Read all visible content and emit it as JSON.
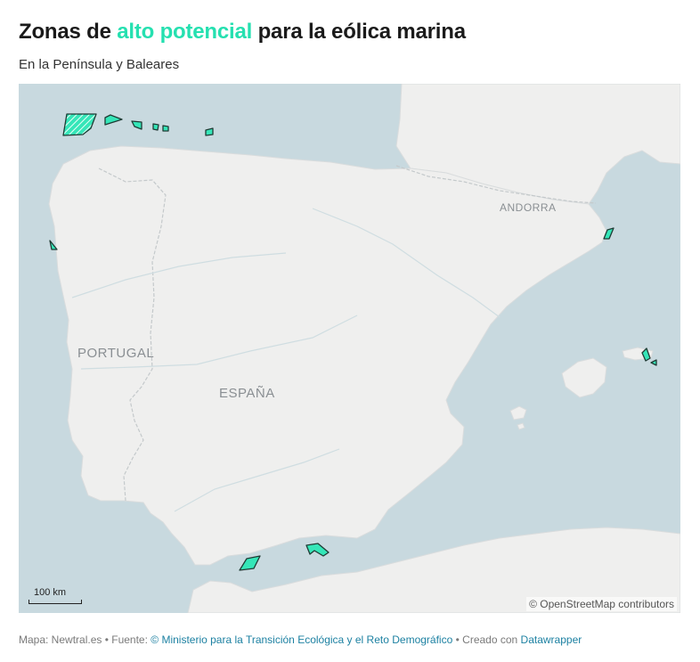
{
  "header": {
    "title_before": "Zonas de",
    "title_highlight": "alto potencial",
    "title_after": "para la eólica marina",
    "subtitle": "En la Península y Baleares",
    "highlight_color": "#25e0b0"
  },
  "map": {
    "labels": {
      "portugal": "PORTUGAL",
      "espana": "ESPAÑA",
      "andorra": "ANDORRA"
    },
    "scale": "100 km",
    "attribution": "© OpenStreetMap contributors",
    "colors": {
      "sea": "#c8d9df",
      "land": "#efefee",
      "zone_fill": "#35e6b8",
      "zone_stroke": "#1f3b34"
    }
  },
  "footer": {
    "prefix": "Mapa: Newtral.es • Fuente:",
    "source": "© Ministerio para la Transición Ecológica y el Reto Demográfico",
    "middle": "• Creado con",
    "tool": "Datawrapper"
  }
}
